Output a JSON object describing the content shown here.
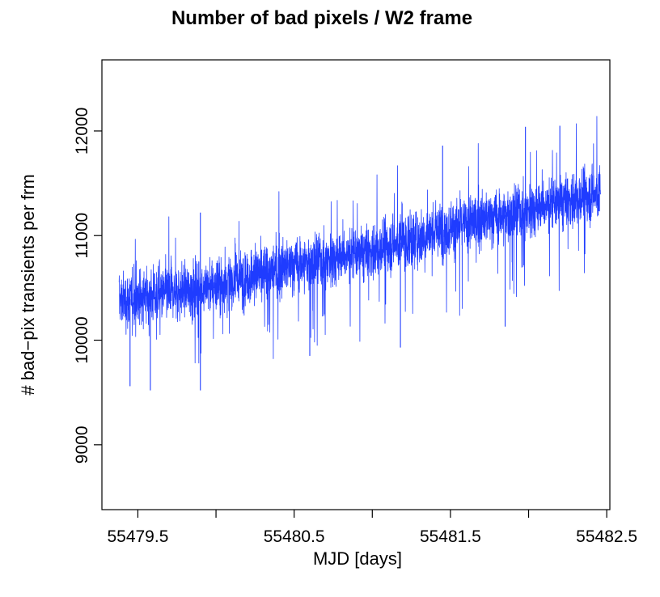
{
  "chart_data": {
    "type": "line",
    "title": "Number of bad pixels / W2 frame",
    "xlabel": "MJD [days]",
    "ylabel": "# bad−pix transients per frm",
    "xlim": [
      55479.27,
      55482.52
    ],
    "ylim": [
      8380,
      12680
    ],
    "x_ticks": [
      55479.5,
      55480.0,
      55480.5,
      55481.0,
      55481.5,
      55482.0,
      55482.5
    ],
    "x_tick_labels": [
      "55479.5",
      "",
      "55480.5",
      "",
      "55481.5",
      "",
      "55482.5"
    ],
    "y_ticks": [
      9000,
      10000,
      11000,
      12000
    ],
    "y_tick_labels": [
      "9000",
      "10000",
      "11000",
      "12000"
    ],
    "grid": false,
    "legend": "none",
    "series": [
      {
        "color": "#1f3cff",
        "x_range": [
          55479.38,
          55482.46
        ],
        "trend": [
          {
            "x": 55479.4,
            "y": 10380
          },
          {
            "x": 55480.0,
            "y": 10520
          },
          {
            "x": 55480.5,
            "y": 10720
          },
          {
            "x": 55481.0,
            "y": 10850
          },
          {
            "x": 55481.5,
            "y": 11080
          },
          {
            "x": 55482.0,
            "y": 11250
          },
          {
            "x": 55482.45,
            "y": 11400
          }
        ],
        "max_points": [
          {
            "x": 55479.9,
            "y": 11220
          },
          {
            "x": 55481.45,
            "y": 11860
          },
          {
            "x": 55481.98,
            "y": 12040
          },
          {
            "x": 55482.2,
            "y": 12050
          }
        ],
        "min_points": [
          {
            "x": 55479.45,
            "y": 9560
          },
          {
            "x": 55479.58,
            "y": 9520
          },
          {
            "x": 55479.9,
            "y": 9520
          },
          {
            "x": 55480.6,
            "y": 9850
          },
          {
            "x": 55481.18,
            "y": 9930
          },
          {
            "x": 55481.85,
            "y": 10130
          }
        ]
      }
    ]
  }
}
